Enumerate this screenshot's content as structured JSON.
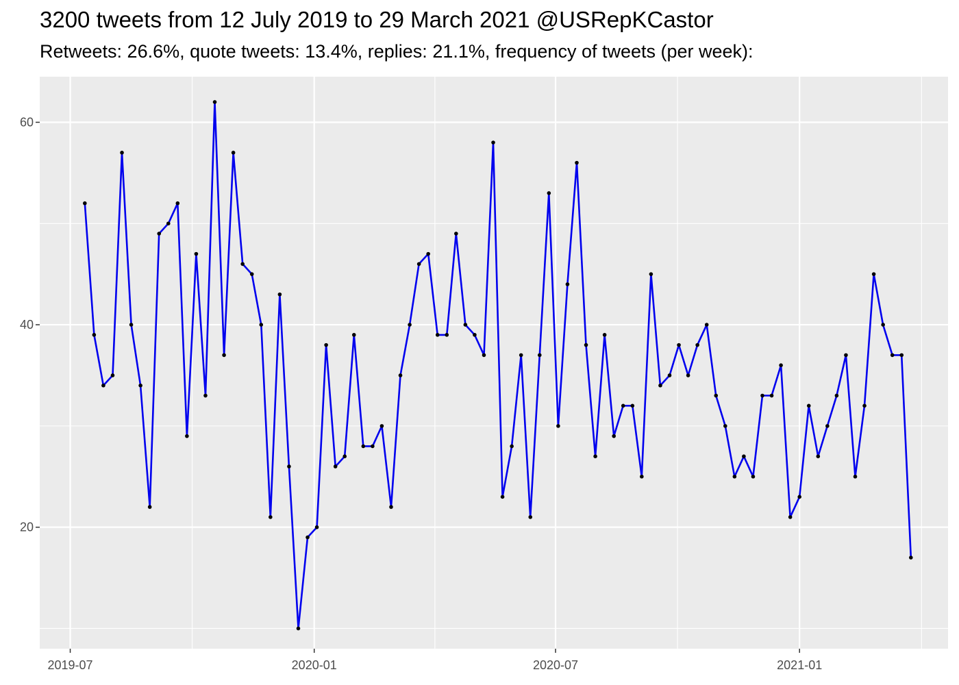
{
  "chart": {
    "title": "3200 tweets from 12 July 2019 to 29 March 2021 @USRepKCastor",
    "subtitle": "Retweets: 26.6%, quote tweets: 13.4%, replies: 21.1%, frequency of tweets (per week):"
  },
  "colors": {
    "panel": "#ebebeb",
    "grid": "#ffffff",
    "line": "#0000ee",
    "point": "#000000",
    "tick_text": "#4d4d4d"
  },
  "chart_data": {
    "type": "line",
    "title": "3200 tweets from 12 July 2019 to 29 March 2021 @USRepKCastor",
    "subtitle": "Retweets: 26.6%, quote tweets: 13.4%, replies: 21.1%, frequency of tweets (per week):",
    "xlabel": "",
    "ylabel": "",
    "x_range": [
      "2019-06-08",
      "2021-04-23"
    ],
    "ylim": [
      8.0,
      64.5
    ],
    "grid": true,
    "legend": "none",
    "x_ticks": [
      {
        "date": "2019-07-01",
        "label": "2019-07"
      },
      {
        "date": "2020-01-01",
        "label": "2020-01"
      },
      {
        "date": "2020-07-01",
        "label": "2020-07"
      },
      {
        "date": "2021-01-01",
        "label": "2021-01"
      }
    ],
    "y_ticks": [
      20,
      40,
      60
    ],
    "series": [
      {
        "x": [
          "2019-07-12",
          "2019-07-19",
          "2019-07-26",
          "2019-08-02",
          "2019-08-09",
          "2019-08-16",
          "2019-08-23",
          "2019-08-30",
          "2019-09-06",
          "2019-09-13",
          "2019-09-20",
          "2019-09-27",
          "2019-10-04",
          "2019-10-11",
          "2019-10-18",
          "2019-10-25",
          "2019-11-01",
          "2019-11-08",
          "2019-11-15",
          "2019-11-22",
          "2019-11-29",
          "2019-12-06",
          "2019-12-13",
          "2019-12-20",
          "2019-12-27",
          "2020-01-03",
          "2020-01-10",
          "2020-01-17",
          "2020-01-24",
          "2020-01-31",
          "2020-02-07",
          "2020-02-14",
          "2020-02-21",
          "2020-02-28",
          "2020-03-06",
          "2020-03-13",
          "2020-03-20",
          "2020-03-27",
          "2020-04-03",
          "2020-04-10",
          "2020-04-17",
          "2020-04-24",
          "2020-05-01",
          "2020-05-08",
          "2020-05-15",
          "2020-05-22",
          "2020-05-29",
          "2020-06-05",
          "2020-06-12",
          "2020-06-19",
          "2020-06-26",
          "2020-07-03",
          "2020-07-10",
          "2020-07-17",
          "2020-07-24",
          "2020-07-31",
          "2020-08-07",
          "2020-08-14",
          "2020-08-21",
          "2020-08-28",
          "2020-09-04",
          "2020-09-11",
          "2020-09-18",
          "2020-09-25",
          "2020-10-02",
          "2020-10-09",
          "2020-10-16",
          "2020-10-23",
          "2020-10-30",
          "2020-11-06",
          "2020-11-13",
          "2020-11-20",
          "2020-11-27",
          "2020-12-04",
          "2020-12-11",
          "2020-12-18",
          "2020-12-25",
          "2021-01-01",
          "2021-01-08",
          "2021-01-15",
          "2021-01-22",
          "2021-01-29",
          "2021-02-05",
          "2021-02-12",
          "2021-02-19",
          "2021-02-26",
          "2021-03-05",
          "2021-03-12",
          "2021-03-19",
          "2021-03-26"
        ],
        "y": [
          52,
          39,
          34,
          35,
          57,
          40,
          34,
          22,
          49,
          50,
          52,
          29,
          47,
          33,
          62,
          37,
          57,
          46,
          45,
          40,
          21,
          43,
          26,
          10,
          19,
          20,
          38,
          26,
          27,
          39,
          28,
          28,
          30,
          22,
          35,
          40,
          46,
          47,
          39,
          39,
          49,
          40,
          39,
          37,
          58,
          23,
          28,
          37,
          21,
          37,
          53,
          30,
          44,
          56,
          38,
          27,
          39,
          29,
          32,
          32,
          25,
          45,
          34,
          35,
          38,
          35,
          38,
          40,
          33,
          30,
          25,
          27,
          25,
          33,
          33,
          36,
          21,
          23,
          32,
          27,
          30,
          33,
          37,
          25,
          32,
          45,
          40,
          37,
          37,
          17
        ]
      }
    ]
  }
}
